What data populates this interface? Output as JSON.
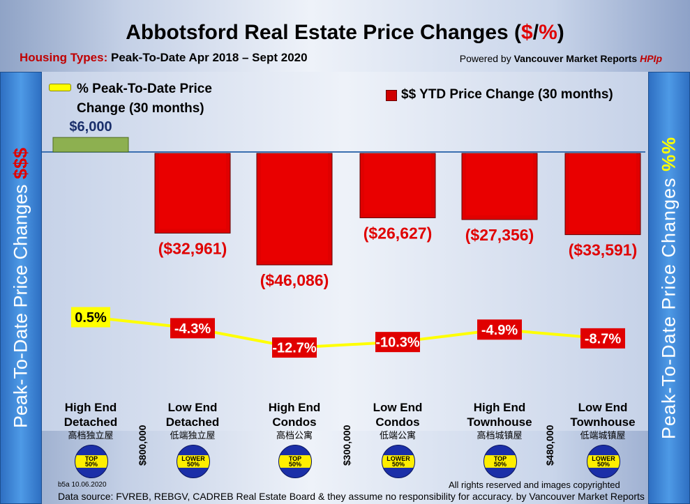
{
  "header": {
    "title_main": "Abbotsford Real Estate Price Changes (",
    "title_dollar": "$",
    "title_slash": "/",
    "title_pct": "%",
    "title_close": ")",
    "subtitle_label": "Housing Types:",
    "subtitle_value": "Peak-To-Date Apr 2018 – Sept 2020",
    "powered_prefix": "Powered by ",
    "powered_brand": "Vancouver Market Reports ",
    "powered_hpi": "HPIp"
  },
  "left_axis": {
    "label": "Peak-To-Date Price Changes ",
    "accent": "$$$"
  },
  "right_axis": {
    "label": "Peak-To-Date  Price  Changes  ",
    "accent": "%%"
  },
  "legend": {
    "pct_label": "% Peak-To-Date Price Change (30 months)",
    "ytd_label": "$$ YTD Price Change (30 months)"
  },
  "chart_data": {
    "type": "bar",
    "categories": [
      {
        "line1": "High End",
        "line2": "Detached",
        "sub": "高档独立屋",
        "badge": "TOP 50%"
      },
      {
        "line1": "Low End",
        "line2": "Detached",
        "sub": "低端独立屋",
        "badge": "LOWER 50%"
      },
      {
        "line1": "High End",
        "line2": "Condos",
        "sub": "高档公寓",
        "badge": "TOP 50%"
      },
      {
        "line1": "Low End",
        "line2": "Condos",
        "sub": "低端公寓",
        "badge": "LOWER 50%"
      },
      {
        "line1": "High End",
        "line2": "Townhouse",
        "sub": "高档城镇屋",
        "badge": "TOP 50%"
      },
      {
        "line1": "Low End",
        "line2": "Townhouse",
        "sub": "低端城镇屋",
        "badge": "LOWER 50%"
      }
    ],
    "series": [
      {
        "name": "$$ YTD Price Change (30 months)",
        "values": [
          6000,
          -32961,
          -46086,
          -26627,
          -27356,
          -33591
        ],
        "labels": [
          "$6,000",
          "($32,961)",
          "($46,086)",
          "($26,627)",
          "($27,356)",
          "($33,591)"
        ]
      },
      {
        "name": "% Peak-To-Date Price Change (30 months)",
        "values": [
          0.5,
          -4.3,
          -12.7,
          -10.3,
          -4.9,
          -8.7
        ],
        "labels": [
          "0.5%",
          "-4.3%",
          "-12.7%",
          "-10.3%",
          "-4.9%",
          "-8.7%"
        ]
      }
    ],
    "price_tiers": [
      "$800,000",
      "$300,000",
      "$480,000"
    ],
    "colors": {
      "positive_bar": "#8db050",
      "negative_bar": "#e00000",
      "line": "#ffff00",
      "baseline": "#3a6fb0"
    }
  },
  "footer": {
    "code": "b5a 10.06.2020",
    "rights": "All rights reserved and  images copyrighted",
    "source": "Data source: FVREB, REBGV, CADREB Real Estate Board & they assume no responsibility for accuracy. by Vancouver Market Reports"
  }
}
